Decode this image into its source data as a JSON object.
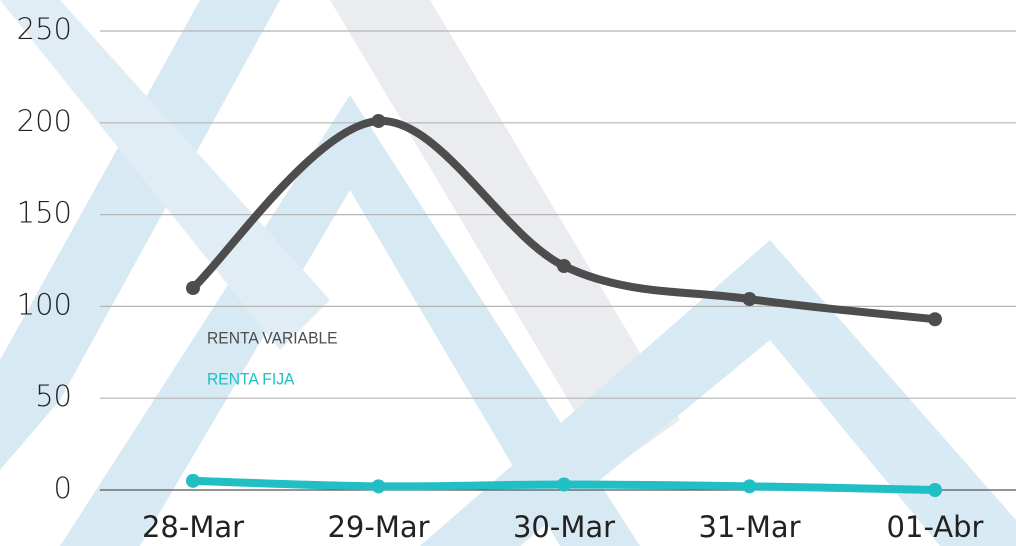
{
  "chart_data": {
    "type": "line",
    "categories": [
      "28-Mar",
      "29-Mar",
      "30-Mar",
      "31-Mar",
      "01-Abr"
    ],
    "series": [
      {
        "name": "RENTA VARIABLE",
        "color": "#4d4d4d",
        "values": [
          110,
          201,
          122,
          104,
          93
        ]
      },
      {
        "name": "RENTA FIJA",
        "color": "#1fbfc4",
        "values": [
          5,
          2,
          3,
          2,
          0
        ]
      }
    ],
    "ylim": [
      0,
      250
    ],
    "yticks": [
      0,
      50,
      100,
      150,
      200,
      250
    ],
    "grid": true,
    "smooth": true,
    "legend": "center-left"
  }
}
